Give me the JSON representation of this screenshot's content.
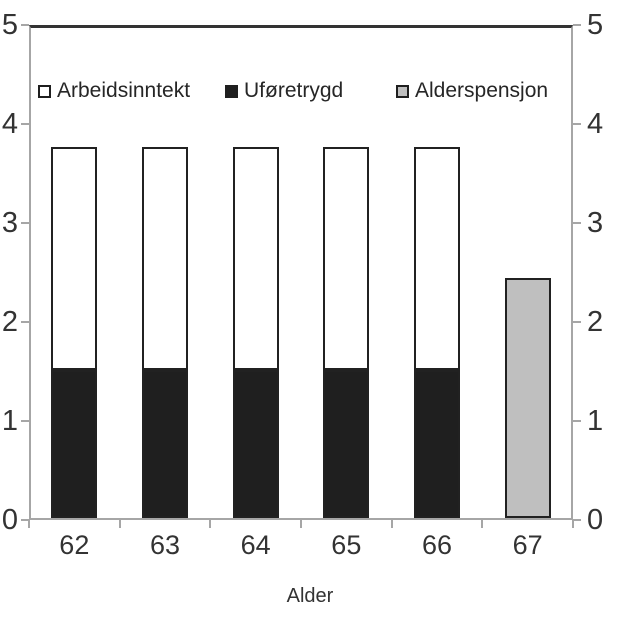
{
  "chart_data": {
    "type": "bar",
    "stacked": true,
    "title": "",
    "xlabel": "Alder",
    "ylabel": "",
    "categories": [
      "62",
      "63",
      "64",
      "65",
      "66",
      "67"
    ],
    "ylim": [
      0,
      5
    ],
    "yticks": [
      "0",
      "1",
      "2",
      "3",
      "4",
      "5"
    ],
    "yticks_sides": "both",
    "grid": false,
    "legend_position": "top-inside",
    "legend": [
      {
        "label": "Arbeidsinntekt",
        "fill": "#ffffff",
        "border": "#1f1f1f"
      },
      {
        "label": "Uføretrygd",
        "fill": "#1f1f1f",
        "border": "#1f1f1f"
      },
      {
        "label": "Alderspensjon",
        "fill": "#bfbfbf",
        "border": "#1f1f1f"
      }
    ],
    "series": [
      {
        "name": "Uføretrygd",
        "values": [
          1.5,
          1.5,
          1.5,
          1.5,
          1.5,
          0
        ]
      },
      {
        "name": "Arbeidsinntekt",
        "values": [
          2.25,
          2.25,
          2.25,
          2.25,
          2.25,
          0
        ]
      },
      {
        "name": "Alderspensjon",
        "values": [
          0,
          0,
          0,
          0,
          0,
          2.42
        ]
      }
    ],
    "colors": {
      "axis_line": "#a6a6a6",
      "plot_top_border": "#333333",
      "bar_outline": "#212121",
      "text": "#333333"
    }
  }
}
